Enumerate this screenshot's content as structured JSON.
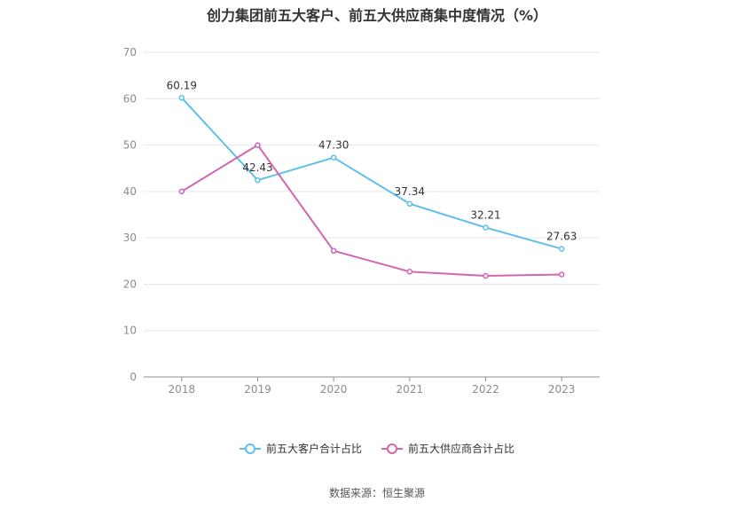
{
  "chart_data": {
    "type": "line",
    "title": "创力集团前五大客户、前五大供应商集中度情况（%）",
    "categories": [
      "2018",
      "2019",
      "2020",
      "2021",
      "2022",
      "2023"
    ],
    "ylim": [
      0,
      70
    ],
    "yticks": [
      0,
      10,
      20,
      30,
      40,
      50,
      60,
      70
    ],
    "grid": true,
    "legend_position": "bottom",
    "series": [
      {
        "name": "前五大客户合计占比",
        "color": "#5bc0eb",
        "values": [
          60.19,
          42.43,
          47.3,
          37.34,
          32.21,
          27.63
        ],
        "labels": [
          "60.19",
          "42.43",
          "47.30",
          "37.34",
          "32.21",
          "27.63"
        ]
      },
      {
        "name": "前五大供应商合计占比",
        "color": "#d264b0",
        "values": [
          40.0,
          50.0,
          27.2,
          22.7,
          21.8,
          22.1
        ],
        "labels": []
      }
    ]
  },
  "source": "数据来源：恒生聚源"
}
